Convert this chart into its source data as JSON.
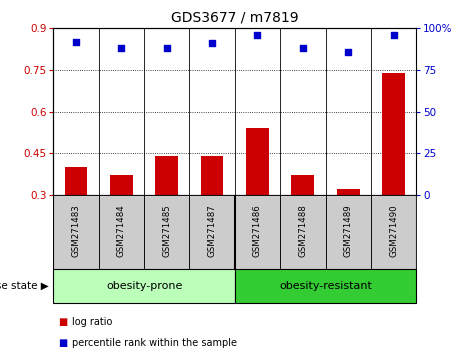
{
  "title": "GDS3677 / m7819",
  "samples": [
    "GSM271483",
    "GSM271484",
    "GSM271485",
    "GSM271487",
    "GSM271486",
    "GSM271488",
    "GSM271489",
    "GSM271490"
  ],
  "log_ratio": [
    0.4,
    0.37,
    0.44,
    0.44,
    0.54,
    0.37,
    0.32,
    0.74
  ],
  "percentile_rank": [
    92,
    88,
    88,
    91,
    96,
    88,
    86,
    96
  ],
  "group1_label": "obesity-prone",
  "group1_count": 4,
  "group2_label": "obesity-resistant",
  "group2_count": 4,
  "disease_state_label": "disease state",
  "ylim_left": [
    0.3,
    0.9
  ],
  "ylim_right": [
    0,
    100
  ],
  "yticks_left": [
    0.3,
    0.45,
    0.6,
    0.75,
    0.9
  ],
  "yticks_right": [
    0,
    25,
    50,
    75,
    100
  ],
  "bar_color": "#cc0000",
  "dot_color": "#0000cc",
  "group1_bg": "#bbffbb",
  "group2_bg": "#33cc33",
  "xticklabel_bg": "#cccccc",
  "legend_bar_label": "log ratio",
  "legend_dot_label": "percentile rank within the sample",
  "title_fontsize": 10,
  "tick_fontsize": 7.5,
  "label_fontsize": 7.5
}
